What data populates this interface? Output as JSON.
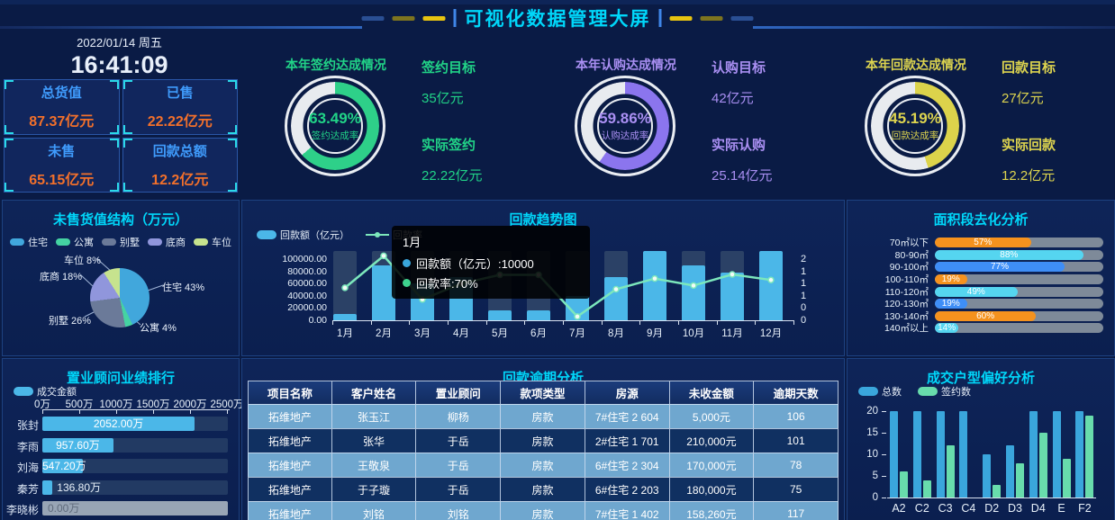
{
  "header": {
    "title": "可视化数据管理大屏"
  },
  "clock": {
    "date": "2022/01/14 周五",
    "time": "16:41:09"
  },
  "stats": {
    "cards": [
      {
        "label": "总货值",
        "value": "87.37亿元"
      },
      {
        "label": "已售",
        "value": "22.22亿元"
      },
      {
        "label": "未售",
        "value": "65.15亿元"
      },
      {
        "label": "回款总额",
        "value": "12.2亿元"
      }
    ]
  },
  "gauges": [
    {
      "title": "本年签约达成情况",
      "percent": "63.49%",
      "percent_num": 63.49,
      "sub_label": "签约达成率",
      "target_label": "签约目标",
      "target_value": "35亿元",
      "actual_label": "实际签约",
      "actual_value": "22.22亿元",
      "color": "#2ED089",
      "text_color": "#21D387"
    },
    {
      "title": "本年认购达成情况",
      "percent": "59.86%",
      "percent_num": 59.86,
      "sub_label": "认购达成率",
      "target_label": "认购目标",
      "target_value": "42亿元",
      "actual_label": "实际认购",
      "actual_value": "25.14亿元",
      "color": "#8B75EE",
      "text_color": "#A98FF2"
    },
    {
      "title": "本年回款达成情况",
      "percent": "45.19%",
      "percent_num": 45.19,
      "sub_label": "回款达成率",
      "target_label": "回款目标",
      "target_value": "27亿元",
      "actual_label": "实际回款",
      "actual_value": "12.2亿元",
      "color": "#DCD34B",
      "text_color": "#DDD44F"
    }
  ],
  "tooltip": {
    "title": "1月",
    "rows": [
      {
        "text": "回款额（亿元）:10000",
        "dot_color": "#3AA6DC"
      },
      {
        "text": "回款率:70%",
        "dot_color": "#3ED28E"
      }
    ]
  },
  "chart_data": [
    {
      "id": "unsold-value-structure",
      "type": "pie",
      "title": "未售货值结构（万元）",
      "unit": "%",
      "slices": [
        {
          "label": "住宅",
          "value": 43,
          "color": "#41A7DC"
        },
        {
          "label": "公寓",
          "value": 4,
          "color": "#45D3A2"
        },
        {
          "label": "别墅",
          "value": 26,
          "color": "#6B7A99"
        },
        {
          "label": "底商",
          "value": 18,
          "color": "#9096DC"
        },
        {
          "label": "车位",
          "value": 8,
          "color": "#C6E38E"
        }
      ],
      "callouts": [
        "车位 8%",
        "底商 18%",
        "别墅 26%",
        "公寓 4%",
        "住宅 43%"
      ]
    },
    {
      "id": "payment-trend",
      "type": "bar+line",
      "title": "回款趋势图",
      "categories": [
        "1月",
        "2月",
        "3月",
        "4月",
        "5月",
        "6月",
        "7月",
        "8月",
        "9月",
        "10月",
        "11月",
        "12月"
      ],
      "series": [
        {
          "name": "回款额（亿元）",
          "type": "bar",
          "color": "#4BB7E8",
          "values": [
            10000,
            90000,
            60000,
            70000,
            16000,
            16000,
            40000,
            70000,
            100000,
            90000,
            78000,
            100000
          ]
        },
        {
          "name": "回款率",
          "type": "line",
          "color": "#7CE7BC",
          "unit": "%",
          "values": [
            70,
            139,
            45,
            79,
            98,
            98,
            8,
            67,
            90,
            75,
            99,
            87
          ]
        }
      ],
      "y_left": {
        "ticks": [
          "100000.00",
          "80000.00",
          "60000.00",
          "40000.00",
          "20000.00",
          "0.00"
        ],
        "max": 100000
      },
      "y_right": {
        "ticks": [
          "2",
          "1",
          "1",
          "1",
          "0",
          "0"
        ]
      }
    },
    {
      "id": "area-segment-analysis",
      "type": "hbar",
      "title": "面积段去化分析",
      "unit": "%",
      "max": 100,
      "rows": [
        {
          "label": "70㎡以下",
          "value": 57,
          "color": "#F5921E"
        },
        {
          "label": "80-90㎡",
          "value": 88,
          "color": "#55D5F0"
        },
        {
          "label": "90-100㎡",
          "value": 77,
          "color": "#3E8EF7"
        },
        {
          "label": "100-110㎡",
          "value": 19,
          "color": "#F5921E"
        },
        {
          "label": "110-120㎡",
          "value": 49,
          "color": "#55D5F0"
        },
        {
          "label": "120-130㎡",
          "value": 19,
          "color": "#3E8EF7"
        },
        {
          "label": "130-140㎡",
          "value": 60,
          "color": "#F5921E"
        },
        {
          "label": "140㎡以上",
          "value": 14,
          "color": "#55D5F0"
        }
      ]
    },
    {
      "id": "consultant-ranking",
      "type": "hbar",
      "title": "置业顾问业绩排行",
      "legend": [
        "成交金额"
      ],
      "bar_color": "#4BB7E8",
      "max": 2500,
      "x_ticks": [
        "0万",
        "500万",
        "1000万",
        "1500万",
        "2000万",
        "2500万"
      ],
      "rows": [
        {
          "label": "张封",
          "value": 2052,
          "value_label": "2052.00万"
        },
        {
          "label": "李雨",
          "value": 957.6,
          "value_label": "957.60万"
        },
        {
          "label": "刘海",
          "value": 547.2,
          "value_label": "547.20万"
        },
        {
          "label": "秦芳",
          "value": 136.8,
          "value_label": "136.80万"
        },
        {
          "label": "李晓彬",
          "value": 0,
          "value_label": "0.00万"
        }
      ]
    },
    {
      "id": "overdue-analysis",
      "type": "table",
      "title": "回款逾期分析",
      "columns": [
        "项目名称",
        "客户姓名",
        "置业顾问",
        "款项类型",
        "房源",
        "未收金额",
        "逾期天数"
      ],
      "rows": [
        [
          "拓维地产",
          "张玉江",
          "柳杨",
          "房款",
          "7#住宅 2 604",
          "5,000元",
          "106"
        ],
        [
          "拓维地产",
          "张华",
          "于岳",
          "房款",
          "2#住宅 1 701",
          "210,000元",
          "101"
        ],
        [
          "拓维地产",
          "王敬泉",
          "于岳",
          "房款",
          "6#住宅 2 304",
          "170,000元",
          "78"
        ],
        [
          "拓维地产",
          "于子璇",
          "于岳",
          "房款",
          "6#住宅 2 203",
          "180,000元",
          "75"
        ],
        [
          "拓维地产",
          "刘铭",
          "刘铭",
          "房款",
          "7#住宅 1 402",
          "158,260元",
          "117"
        ]
      ]
    },
    {
      "id": "deal-housetype-preference",
      "type": "bar",
      "title": "成交户型偏好分析",
      "categories": [
        "A2",
        "C2",
        "C3",
        "C4",
        "D2",
        "D3",
        "D4",
        "E",
        "F2"
      ],
      "series": [
        {
          "name": "总数",
          "color": "#3AA6DC",
          "values": [
            20,
            20,
            20,
            20,
            10,
            12,
            20,
            20,
            20
          ]
        },
        {
          "name": "签约数",
          "color": "#68DCAC",
          "values": [
            6,
            4,
            12,
            0,
            3,
            8,
            15,
            9,
            19
          ]
        }
      ],
      "y_ticks": [
        0,
        5,
        10,
        15,
        20
      ],
      "ylim": [
        0,
        20
      ]
    }
  ]
}
